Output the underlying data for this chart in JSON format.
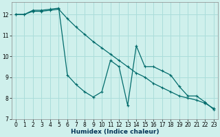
{
  "xlabel": "Humidex (Indice chaleur)",
  "background_color": "#cff0ec",
  "grid_color": "#aaddda",
  "line_color": "#006b6b",
  "xlim": [
    -0.5,
    23.5
  ],
  "ylim": [
    7,
    12.6
  ],
  "yticks": [
    7,
    8,
    9,
    10,
    11,
    12
  ],
  "xticks": [
    0,
    1,
    2,
    3,
    4,
    5,
    6,
    7,
    8,
    9,
    10,
    11,
    12,
    13,
    14,
    15,
    16,
    17,
    18,
    19,
    20,
    21,
    22,
    23
  ],
  "line1_x": [
    0,
    1,
    2,
    3,
    4,
    5,
    6,
    7,
    8,
    9,
    10,
    11,
    12,
    13,
    14,
    15,
    16,
    17,
    18,
    19,
    20,
    21,
    22,
    23
  ],
  "line1_y": [
    12.0,
    12.0,
    12.2,
    12.2,
    12.25,
    12.3,
    9.1,
    8.65,
    8.3,
    8.05,
    8.3,
    9.8,
    9.5,
    7.65,
    10.5,
    9.5,
    9.5,
    9.3,
    9.1,
    8.55,
    8.1,
    8.1,
    7.8,
    7.45
  ],
  "line2_x": [
    0,
    1,
    2,
    3,
    4,
    5,
    6,
    7,
    8,
    9,
    10,
    11,
    12,
    13,
    14,
    15,
    16,
    17,
    18,
    19,
    20,
    21,
    22,
    23
  ],
  "line2_y": [
    12.0,
    12.0,
    12.15,
    12.15,
    12.2,
    12.25,
    11.8,
    11.4,
    11.05,
    10.7,
    10.4,
    10.1,
    9.8,
    9.5,
    9.2,
    9.0,
    8.7,
    8.5,
    8.3,
    8.1,
    8.0,
    7.9,
    7.75,
    7.5
  ],
  "tick_fontsize": 5.5,
  "xlabel_fontsize": 6.5
}
